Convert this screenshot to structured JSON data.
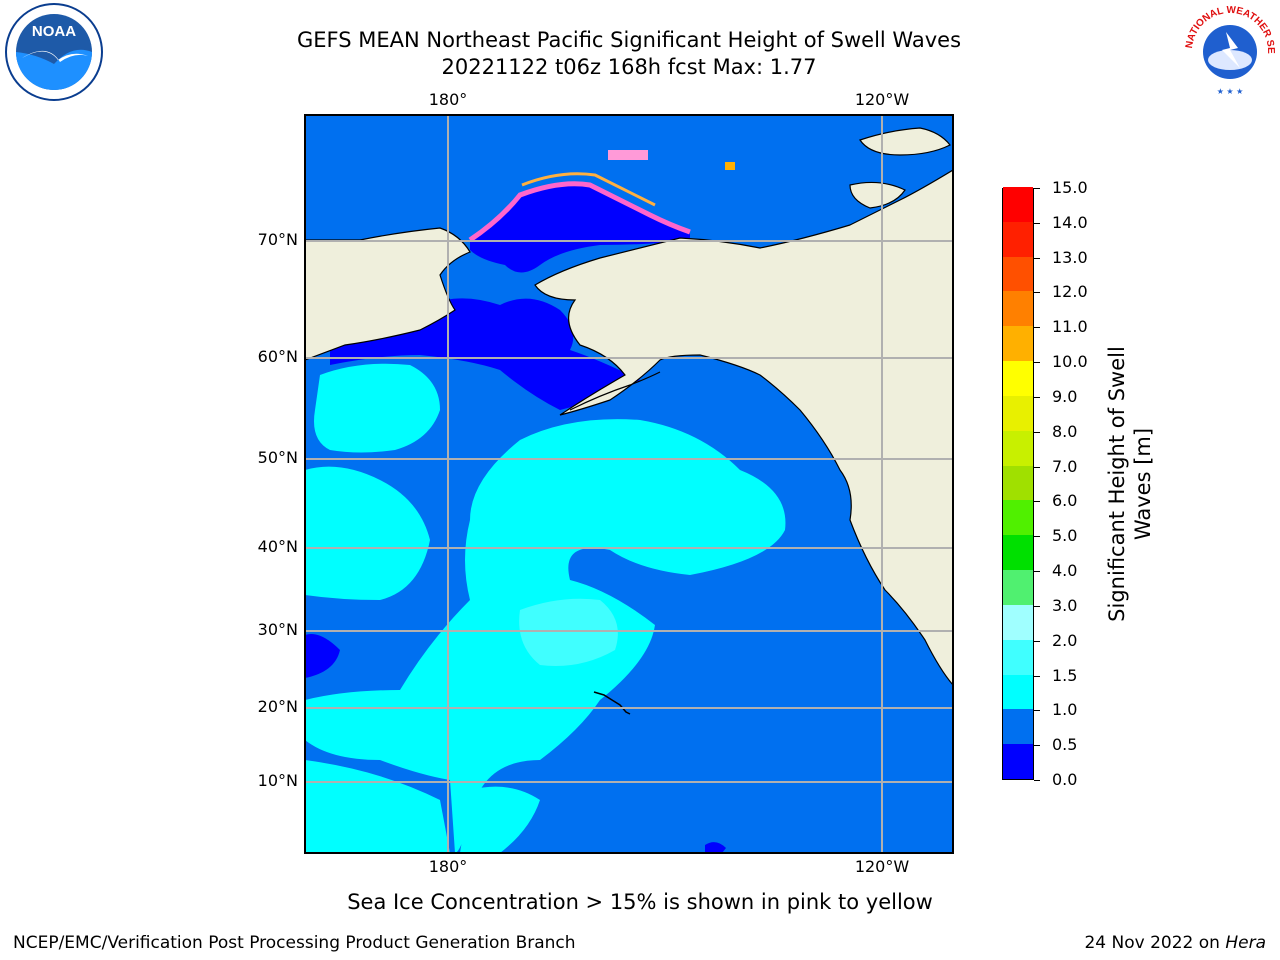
{
  "header": {
    "title_line1": "GEFS MEAN Northeast Pacific Significant Height of Swell Waves",
    "title_line2": "20221122 t06z 168h fcst   Max: 1.77"
  },
  "map": {
    "lon_labels_top": [
      "180°",
      "120°W"
    ],
    "lon_labels_bottom": [
      "180°",
      "120°W"
    ],
    "lat_labels": [
      "70°N",
      "60°N",
      "50°N",
      "40°N",
      "30°N",
      "20°N",
      "10°N"
    ]
  },
  "colorbar": {
    "title_line1": "Significant Height of Swell",
    "title_line2": "Waves [m]",
    "tick_labels": [
      "15.0",
      "14.0",
      "13.0",
      "12.0",
      "11.0",
      "10.0",
      "9.0",
      "8.0",
      "7.0",
      "6.0",
      "5.0",
      "4.0",
      "3.0",
      "2.0",
      "1.5",
      "1.0",
      "0.5",
      "0.0"
    ],
    "colors_bottom_to_top": [
      "#0000ff",
      "#0070f0",
      "#00ffff",
      "#40ffff",
      "#a0ffff",
      "#50f070",
      "#00e000",
      "#50f000",
      "#a0e000",
      "#c8f000",
      "#e8f000",
      "#ffff00",
      "#ffb000",
      "#ff8000",
      "#ff5000",
      "#ff2000",
      "#ff0000"
    ]
  },
  "colors": {
    "ocean_low": "#0070f0",
    "ocean_mid": "#00ffff",
    "ocean_lightcyan": "#40ffff",
    "ice_pink": "#ff66cc",
    "land": "#efefdc",
    "deep_blue": "#0000ff"
  },
  "caption": "Sea Ice Concentration > 15% is shown in pink to yellow",
  "footer": {
    "left": "NCEP/EMC/Verification Post Processing Product Generation Branch",
    "right_prefix": "24 Nov 2022 on ",
    "right_host": "Hera"
  },
  "logos": {
    "noaa_text": "NOAA",
    "nws_text": "NATIONAL WEATHER SERVICE"
  }
}
